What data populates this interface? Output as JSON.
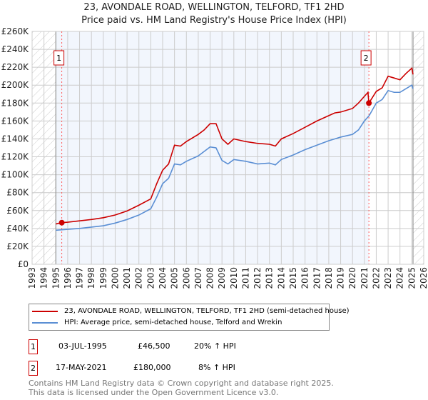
{
  "chart_data": {
    "type": "line",
    "title": "23, AVONDALE ROAD, WELLINGTON, TELFORD, TF1 2HD",
    "subtitle": "Price paid vs. HM Land Registry's House Price Index (HPI)",
    "xlim": [
      1993,
      2026
    ],
    "ylim": [
      0,
      260000
    ],
    "x_ticks": [
      "1993",
      "1994",
      "1995",
      "1996",
      "1997",
      "1998",
      "1999",
      "2000",
      "2001",
      "2002",
      "2003",
      "2004",
      "2005",
      "2006",
      "2007",
      "2008",
      "2009",
      "2010",
      "2011",
      "2012",
      "2013",
      "2014",
      "2015",
      "2016",
      "2017",
      "2018",
      "2019",
      "2020",
      "2021",
      "2022",
      "2023",
      "2024",
      "2025",
      "2026"
    ],
    "y_ticks": [
      "£0",
      "£20K",
      "£40K",
      "£60K",
      "£80K",
      "£100K",
      "£120K",
      "£140K",
      "£160K",
      "£180K",
      "£200K",
      "£220K",
      "£240K",
      "£260K"
    ],
    "grid": true,
    "series": [
      {
        "name": "23, AVONDALE ROAD, WELLINGTON, TELFORD, TF1 2HD (semi-detached house)",
        "color": "#cc0000",
        "x": [
          1995.0,
          1995.5,
          1996,
          1997,
          1998,
          1999,
          2000,
          2001,
          2002,
          2003,
          2003.5,
          2004,
          2004.5,
          2005,
          2005.5,
          2006,
          2007,
          2007.5,
          2008,
          2008.5,
          2009,
          2009.5,
          2010,
          2011,
          2012,
          2013,
          2013.5,
          2014,
          2015,
          2016,
          2017,
          2018,
          2018.5,
          2019,
          2020,
          2020.5,
          2021.3,
          2021.38,
          2022,
          2022.5,
          2023,
          2023.5,
          2024,
          2024.5,
          2025,
          2025.1
        ],
        "y": [
          45000,
          46500,
          47000,
          48500,
          50000,
          52000,
          55000,
          59500,
          66000,
          73000,
          90000,
          105000,
          112000,
          133000,
          132000,
          137000,
          145000,
          150000,
          157000,
          157000,
          140000,
          134000,
          140000,
          137000,
          135000,
          134000,
          132000,
          140000,
          146000,
          153000,
          160000,
          166000,
          169000,
          170000,
          174000,
          180000,
          192000,
          180000,
          193000,
          197000,
          210000,
          208000,
          206000,
          213000,
          219000,
          212000
        ]
      },
      {
        "name": "HPI: Average price, semi-detached house, Telford and Wrekin",
        "color": "#5b8fd4",
        "x": [
          1995.0,
          1996,
          1997,
          1998,
          1999,
          2000,
          2001,
          2002,
          2003,
          2003.5,
          2004,
          2004.5,
          2005,
          2005.5,
          2006,
          2007,
          2007.5,
          2008,
          2008.5,
          2009,
          2009.5,
          2010,
          2011,
          2012,
          2013,
          2013.5,
          2014,
          2015,
          2016,
          2017,
          2018,
          2018.5,
          2019,
          2020,
          2020.5,
          2021,
          2021.4,
          2022,
          2022.5,
          2023,
          2023.5,
          2024,
          2024.5,
          2025,
          2025.1
        ],
        "y": [
          38000,
          39000,
          40000,
          41500,
          43000,
          46000,
          50000,
          55000,
          62000,
          75000,
          90000,
          96000,
          112000,
          111000,
          115000,
          121000,
          126000,
          131000,
          130000,
          116000,
          112000,
          117000,
          115000,
          112000,
          113000,
          111000,
          117000,
          122000,
          128000,
          133000,
          138000,
          140000,
          142000,
          145000,
          150000,
          160000,
          166000,
          180000,
          184000,
          194000,
          192000,
          192000,
          196000,
          200000,
          196000
        ]
      }
    ],
    "annotations": [
      {
        "label": "1",
        "x": 1995.5,
        "y": 46500
      },
      {
        "label": "2",
        "x": 2021.38,
        "y": 180000
      }
    ],
    "legend_placement": "below"
  },
  "transactions": [
    {
      "num": "1",
      "date": "03-JUL-1995",
      "price": "£46,500",
      "hpi": "20% ↑ HPI"
    },
    {
      "num": "2",
      "date": "17-MAY-2021",
      "price": "£180,000",
      "hpi": "8% ↑ HPI"
    }
  ],
  "footer": [
    "Contains HM Land Registry data © Crown copyright and database right 2025.",
    "This data is licensed under the Open Government Licence v3.0."
  ]
}
